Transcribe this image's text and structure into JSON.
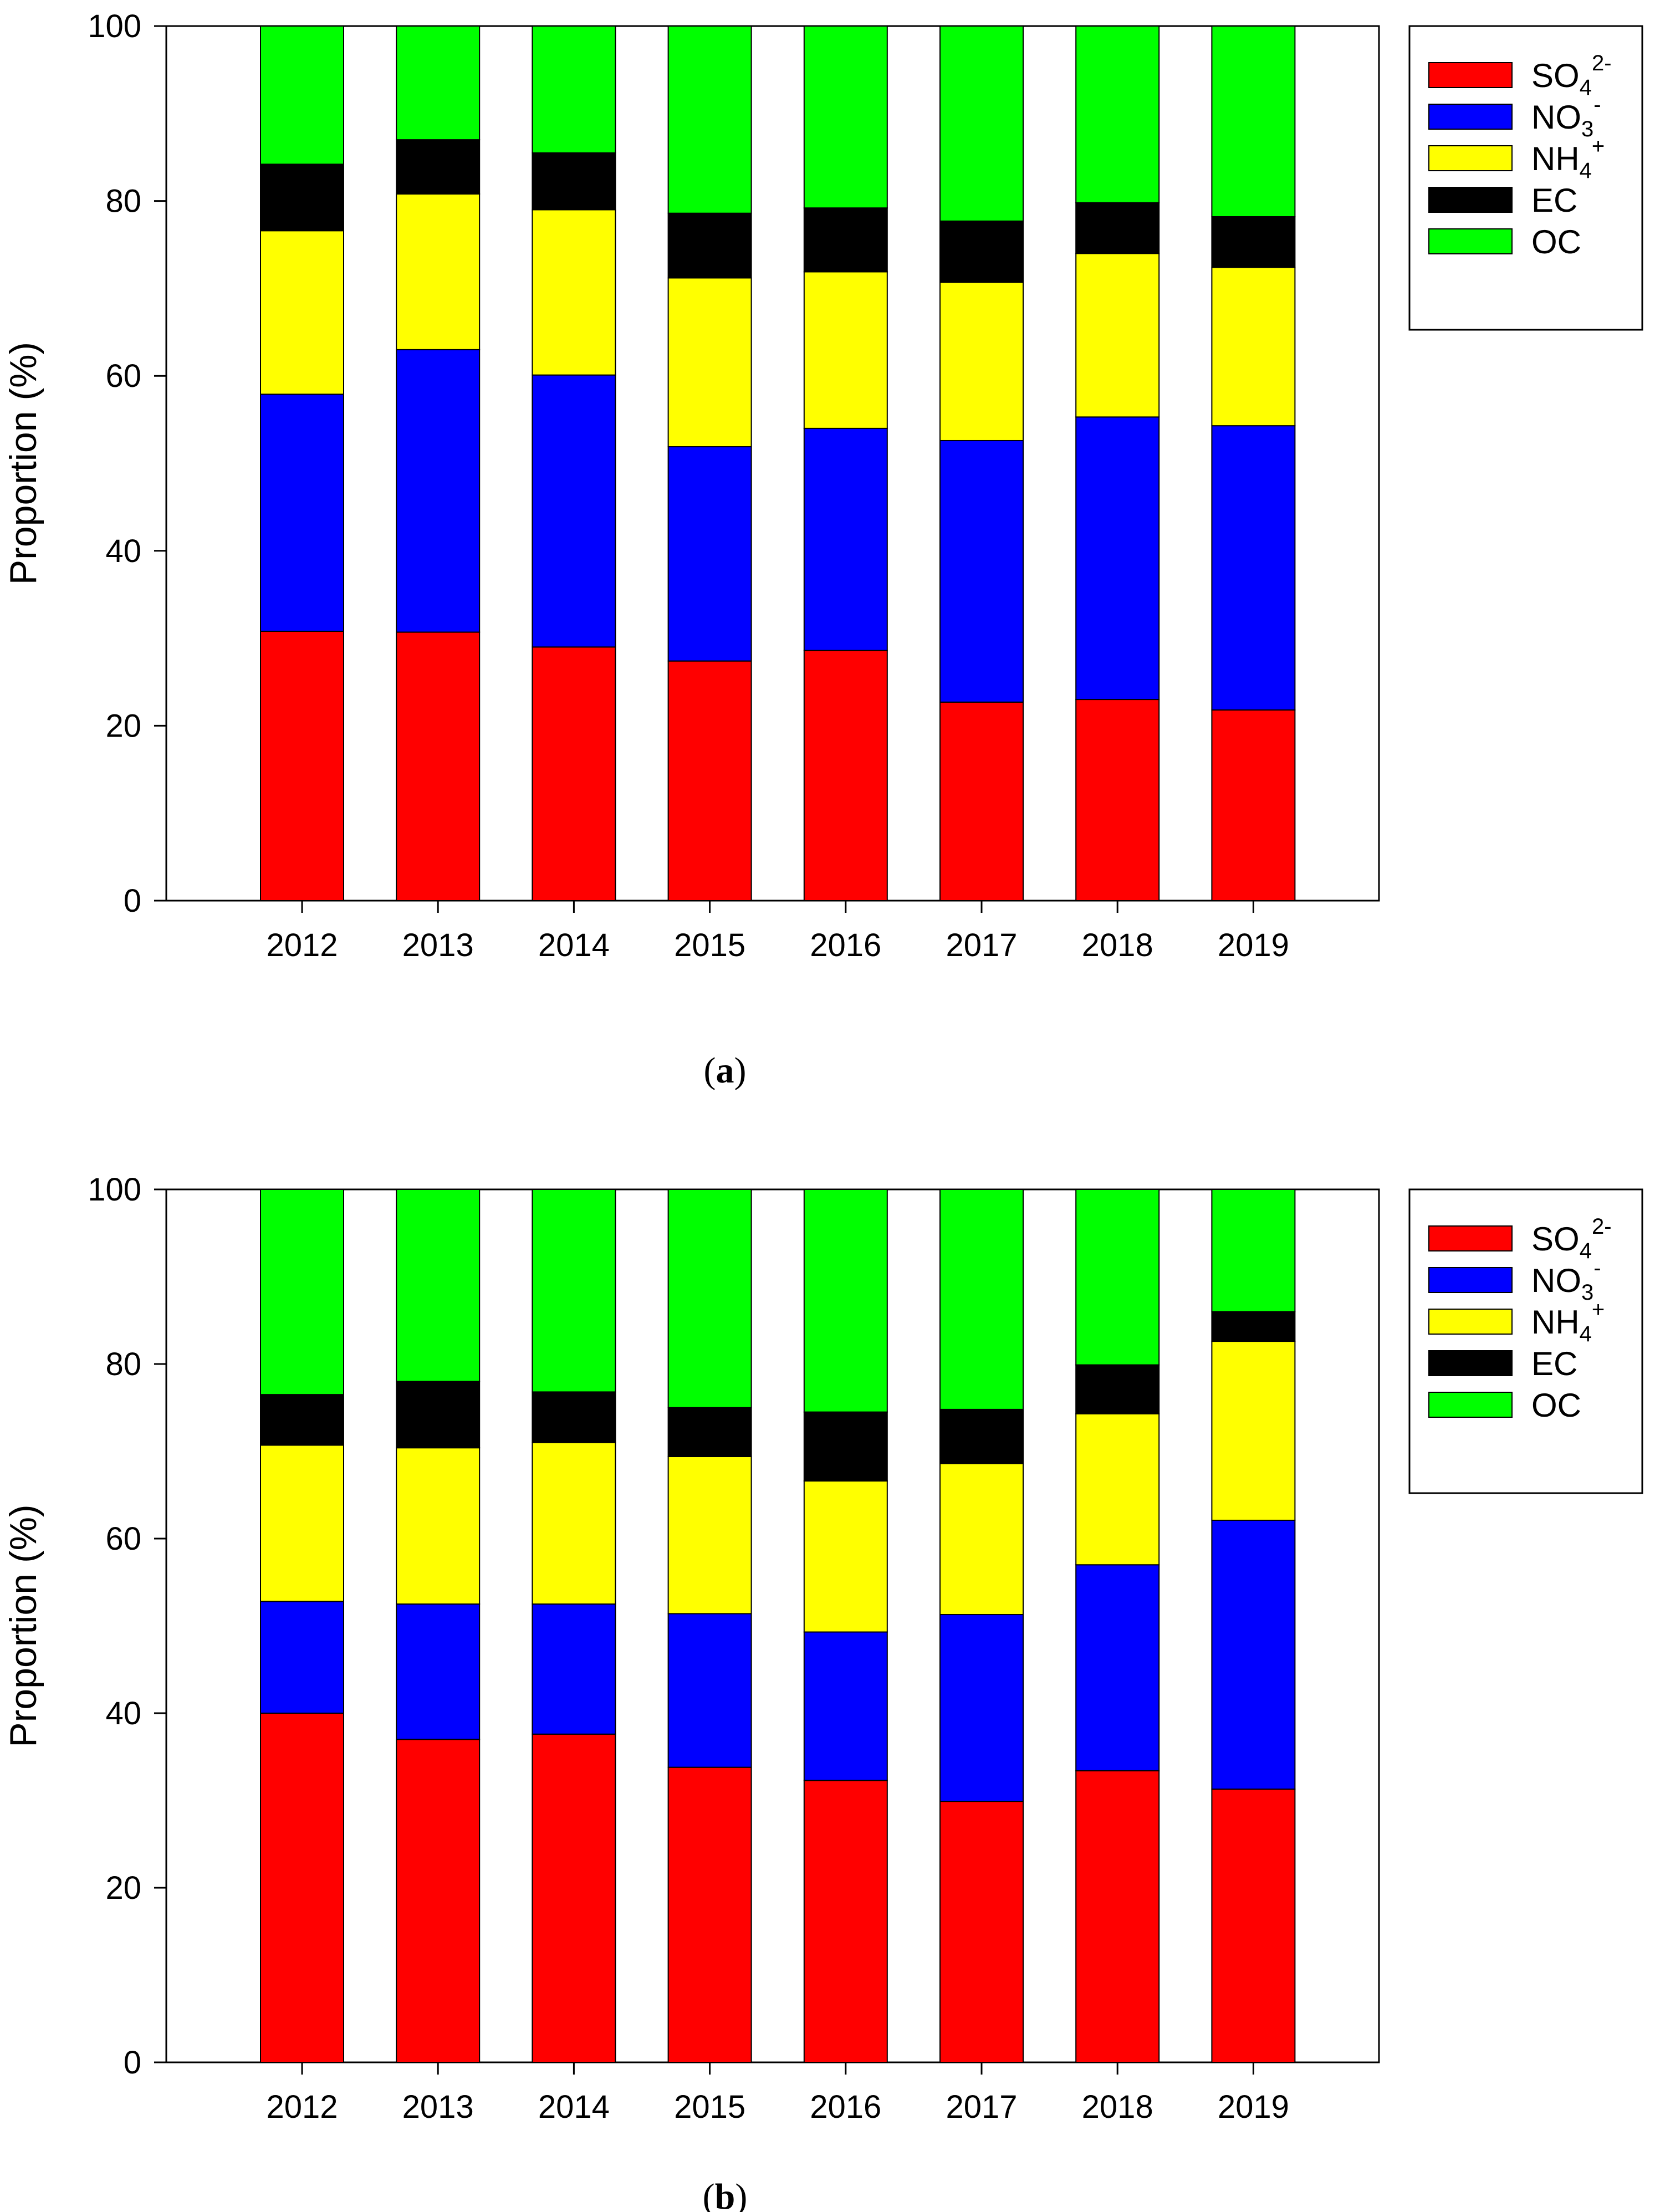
{
  "chart_data": [
    {
      "type": "bar",
      "stacked": true,
      "panel": "a",
      "caption_open": "(",
      "caption_letter": "a",
      "caption_close": ")",
      "ylabel": "Proportion (%)",
      "xlabel": "",
      "ylim": [
        0,
        100
      ],
      "yticks": [
        0,
        20,
        40,
        60,
        80,
        100
      ],
      "legend_position": "top-right",
      "categories": [
        "2012",
        "2013",
        "2014",
        "2015",
        "2016",
        "2017",
        "2018",
        "2019"
      ],
      "series": [
        {
          "name": "SO4 2-",
          "label_base": "SO",
          "label_sub": "4",
          "label_sup": "2-",
          "color": "#ff0000",
          "values": [
            30.8,
            30.7,
            29.0,
            27.4,
            28.6,
            22.7,
            23.0,
            21.8
          ]
        },
        {
          "name": "NO3 -",
          "label_base": "NO",
          "label_sub": "3",
          "label_sup": "-",
          "color": "#0000ff",
          "values": [
            27.1,
            32.3,
            31.1,
            24.5,
            25.4,
            29.9,
            32.3,
            32.5
          ]
        },
        {
          "name": "NH4 +",
          "label_base": "NH",
          "label_sub": "4",
          "label_sup": "+",
          "color": "#ffff00",
          "values": [
            18.7,
            17.8,
            18.9,
            19.3,
            17.9,
            18.1,
            18.7,
            18.1
          ]
        },
        {
          "name": "EC",
          "label_base": "EC",
          "label_sub": "",
          "label_sup": "",
          "color": "#000000",
          "values": [
            7.6,
            6.2,
            6.5,
            7.4,
            7.3,
            7.0,
            5.8,
            5.8
          ]
        },
        {
          "name": "OC",
          "label_base": "OC",
          "label_sub": "",
          "label_sup": "",
          "color": "#00ff00",
          "values": [
            15.8,
            13.0,
            14.5,
            21.4,
            20.8,
            22.3,
            20.2,
            21.8
          ]
        }
      ]
    },
    {
      "type": "bar",
      "stacked": true,
      "panel": "b",
      "caption_open": "(",
      "caption_letter": "b",
      "caption_close": ")",
      "ylabel": "Proportion (%)",
      "xlabel": "",
      "ylim": [
        0,
        100
      ],
      "yticks": [
        0,
        20,
        40,
        60,
        80,
        100
      ],
      "legend_position": "top-right",
      "categories": [
        "2012",
        "2013",
        "2014",
        "2015",
        "2016",
        "2017",
        "2018",
        "2019"
      ],
      "series": [
        {
          "name": "SO4 2-",
          "label_base": "SO",
          "label_sub": "4",
          "label_sup": "2-",
          "color": "#ff0000",
          "values": [
            40.0,
            37.0,
            37.6,
            33.8,
            32.3,
            29.9,
            33.4,
            31.3
          ]
        },
        {
          "name": "NO3 -",
          "label_base": "NO",
          "label_sub": "3",
          "label_sup": "-",
          "color": "#0000ff",
          "values": [
            12.8,
            15.5,
            14.9,
            17.6,
            17.0,
            21.4,
            23.6,
            30.8
          ]
        },
        {
          "name": "NH4 +",
          "label_base": "NH",
          "label_sub": "4",
          "label_sup": "+",
          "color": "#ffff00",
          "values": [
            17.9,
            17.9,
            18.5,
            18.0,
            17.3,
            17.3,
            17.3,
            20.5
          ]
        },
        {
          "name": "EC",
          "label_base": "EC",
          "label_sub": "",
          "label_sup": "",
          "color": "#000000",
          "values": [
            5.8,
            7.6,
            5.8,
            5.6,
            7.9,
            6.2,
            5.6,
            3.4
          ]
        },
        {
          "name": "OC",
          "label_base": "OC",
          "label_sub": "",
          "label_sup": "",
          "color": "#00ff00",
          "values": [
            23.5,
            22.0,
            23.2,
            25.0,
            25.5,
            25.2,
            20.1,
            14.0
          ]
        }
      ]
    }
  ]
}
